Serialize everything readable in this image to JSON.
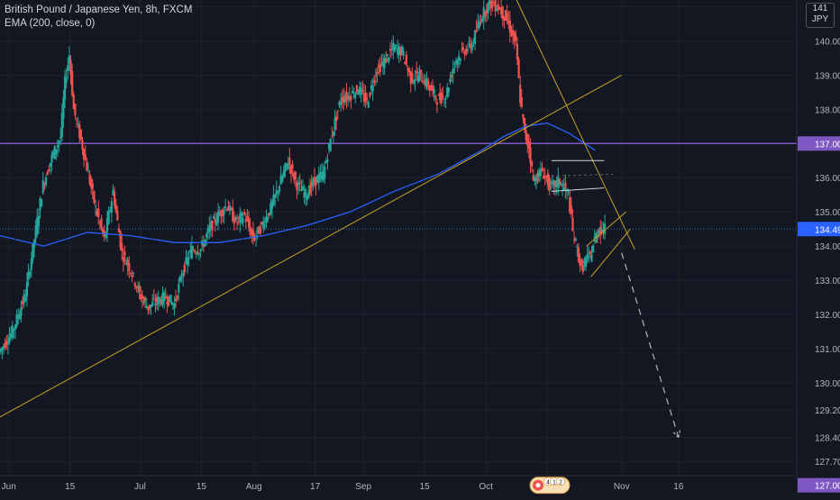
{
  "header": {
    "title": "British Pound / Japanese Yen, 8h, FXCM",
    "indicator": "EMA (200, close, 0)"
  },
  "currency_badge": {
    "top": "141",
    "bottom": "JPY"
  },
  "events_badge": {
    "count_a": "4",
    "count_b": "1",
    "count_c": "2"
  },
  "colors": {
    "background": "#131722",
    "up": "#26a69a",
    "down": "#ef5350",
    "ema": "#2962ff",
    "horizontal_level": "#7e57c2",
    "trendline": "#c9a227",
    "channel": "#d1d4dc",
    "projection": "#b2b5be",
    "price_label": "#2962ff"
  },
  "chart_data": {
    "type": "line",
    "title": "British Pound / Japanese Yen, 8h, FXCM",
    "xlabel": "",
    "ylabel": "",
    "ylim": [
      126.7,
      141.2
    ],
    "x_tick_labels": [
      "Jun",
      "15",
      "Jul",
      "15",
      "Aug",
      "17",
      "Sep",
      "15",
      "Oct",
      "15",
      "Nov",
      "16"
    ],
    "y_tick_labels": [
      "141.000",
      "140.000",
      "139.000",
      "138.000",
      "137.000",
      "136.000",
      "135.000",
      "134.000",
      "133.000",
      "132.000",
      "131.000",
      "130.000",
      "129.200",
      "128.400",
      "127.700",
      "127.000"
    ],
    "current_price": "134.497",
    "x_range_days": [
      0,
      182
    ],
    "series": [
      {
        "kind": "price",
        "points": [
          [
            0,
            130.9
          ],
          [
            3,
            131.5
          ],
          [
            6,
            132.6
          ],
          [
            8,
            134.2
          ],
          [
            10,
            135.8
          ],
          [
            12,
            136.6
          ],
          [
            14,
            137.2
          ],
          [
            15,
            138.8
          ],
          [
            16,
            139.6
          ],
          [
            17,
            138.0
          ],
          [
            19,
            136.9
          ],
          [
            22,
            135.1
          ],
          [
            24,
            134.2
          ],
          [
            26,
            135.6
          ],
          [
            28,
            133.8
          ],
          [
            30,
            133.3
          ],
          [
            32,
            132.6
          ],
          [
            34,
            132.2
          ],
          [
            36,
            132.4
          ],
          [
            38,
            132.5
          ],
          [
            40,
            132.3
          ],
          [
            42,
            133.3
          ],
          [
            44,
            133.9
          ],
          [
            46,
            133.9
          ],
          [
            48,
            134.5
          ],
          [
            50,
            134.9
          ],
          [
            52,
            135.2
          ],
          [
            54,
            134.7
          ],
          [
            56,
            134.9
          ],
          [
            58,
            134.2
          ],
          [
            60,
            134.6
          ],
          [
            62,
            135.1
          ],
          [
            64,
            135.8
          ],
          [
            66,
            136.5
          ],
          [
            68,
            135.8
          ],
          [
            70,
            135.5
          ],
          [
            72,
            135.9
          ],
          [
            74,
            136.1
          ],
          [
            76,
            137.3
          ],
          [
            78,
            138.3
          ],
          [
            80,
            138.4
          ],
          [
            82,
            138.6
          ],
          [
            84,
            138.2
          ],
          [
            86,
            139.1
          ],
          [
            88,
            139.4
          ],
          [
            90,
            139.8
          ],
          [
            92,
            139.7
          ],
          [
            94,
            138.9
          ],
          [
            96,
            139.0
          ],
          [
            98,
            138.7
          ],
          [
            100,
            138.3
          ],
          [
            102,
            138.4
          ],
          [
            104,
            139.4
          ],
          [
            106,
            139.7
          ],
          [
            108,
            139.9
          ],
          [
            110,
            140.7
          ],
          [
            112,
            141.1
          ],
          [
            114,
            141.0
          ],
          [
            116,
            140.6
          ],
          [
            118,
            139.9
          ],
          [
            119,
            138.3
          ],
          [
            120,
            137.3
          ],
          [
            121,
            136.9
          ],
          [
            122,
            135.9
          ],
          [
            124,
            136.2
          ],
          [
            126,
            135.7
          ],
          [
            128,
            135.9
          ],
          [
            130,
            135.5
          ],
          [
            131,
            134.4
          ],
          [
            132,
            133.9
          ],
          [
            133,
            133.3
          ],
          [
            134,
            133.6
          ],
          [
            135,
            133.7
          ],
          [
            136,
            134.2
          ],
          [
            137,
            134.5
          ],
          [
            138,
            134.497
          ]
        ]
      },
      {
        "name": "EMA (200, close, 0)",
        "kind": "ema",
        "points": [
          [
            0,
            134.3
          ],
          [
            10,
            134.0
          ],
          [
            20,
            134.4
          ],
          [
            30,
            134.3
          ],
          [
            40,
            134.1
          ],
          [
            50,
            134.1
          ],
          [
            60,
            134.3
          ],
          [
            70,
            134.6
          ],
          [
            80,
            135.0
          ],
          [
            90,
            135.6
          ],
          [
            100,
            136.1
          ],
          [
            110,
            136.8
          ],
          [
            115,
            137.2
          ],
          [
            120,
            137.5
          ],
          [
            125,
            137.6
          ],
          [
            130,
            137.3
          ],
          [
            136,
            136.8
          ]
        ]
      }
    ],
    "horizontal_levels": [
      137.0,
      127.0
    ],
    "trendlines": [
      {
        "kind": "trendline",
        "from": [
          0,
          129.0
        ],
        "to": [
          142,
          139.0
        ]
      },
      {
        "kind": "trendline",
        "from": [
          118,
          141.2
        ],
        "to": [
          145,
          133.9
        ]
      },
      {
        "kind": "channel",
        "from": [
          126,
          136.5
        ],
        "to": [
          138,
          136.5
        ]
      },
      {
        "kind": "channel",
        "from": [
          126,
          135.6
        ],
        "to": [
          138,
          135.7
        ]
      },
      {
        "kind": "channel-mid",
        "from": [
          126,
          136.05
        ],
        "to": [
          140,
          136.1
        ]
      },
      {
        "kind": "flag",
        "from": [
          135,
          133.1
        ],
        "to": [
          144,
          134.5
        ]
      },
      {
        "kind": "flag",
        "from": [
          134,
          134.0
        ],
        "to": [
          143,
          135.0
        ]
      }
    ],
    "projection": {
      "from": [
        142,
        133.8
      ],
      "to": [
        155,
        128.4
      ]
    },
    "grid": true,
    "legend": "top-left"
  }
}
